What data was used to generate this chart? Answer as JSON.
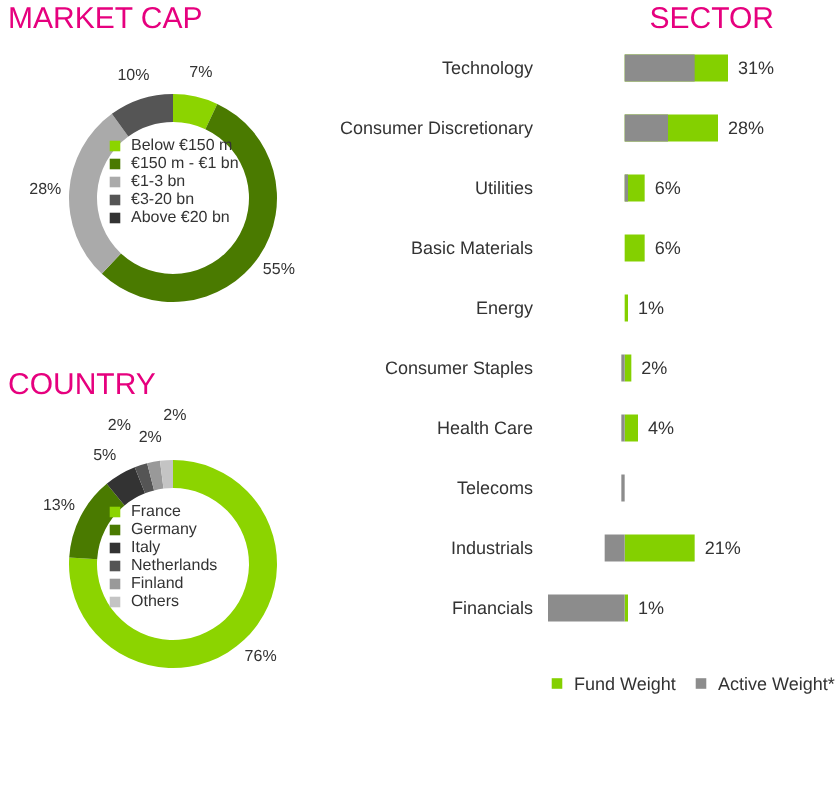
{
  "chart_data": [
    {
      "type": "donut",
      "title": "MARKET CAP",
      "categories": [
        "Below €150 m",
        "€150 m - €1 bn",
        "€1-3 bn",
        "€3-20 bn",
        "Above €20 bn"
      ],
      "values": [
        7,
        55,
        28,
        10,
        0
      ],
      "colors": [
        "#8cd400",
        "#4a7a00",
        "#aaaaaa",
        "#555555",
        "#333333"
      ],
      "value_labels": [
        "7%",
        "55%",
        "28%",
        "10%",
        null
      ],
      "legend": "center"
    },
    {
      "type": "donut",
      "title": "COUNTRY",
      "categories": [
        "France",
        "Germany",
        "Italy",
        "Netherlands",
        "Finland",
        "Others"
      ],
      "values": [
        76,
        13,
        5,
        2,
        2,
        2
      ],
      "colors": [
        "#8cd400",
        "#4a7a00",
        "#333333",
        "#555555",
        "#999999",
        "#c4c4c4"
      ],
      "value_labels": [
        "76%",
        "13%",
        "5%",
        "2%",
        "2%",
        "2%"
      ],
      "legend": "center"
    },
    {
      "type": "bar",
      "title": "SECTOR",
      "orientation": "horizontal",
      "legend": "bottom",
      "categories": [
        "Technology",
        "Consumer Discretionary",
        "Utilities",
        "Basic Materials",
        "Energy",
        "Consumer Staples",
        "Health Care",
        "Telecoms",
        "Industrials",
        "Financials"
      ],
      "series": [
        {
          "name": "Fund Weight",
          "color": "#84d000",
          "values": [
            31,
            28,
            6,
            6,
            1,
            2,
            4,
            0,
            21,
            1
          ],
          "value_labels": [
            "31%",
            "28%",
            "6%",
            "6%",
            "1%",
            "2%",
            "4%",
            null,
            "21%",
            "1%"
          ]
        },
        {
          "name": "Active Weight*",
          "color": "#8c8c8c",
          "values": [
            21,
            13,
            1,
            0,
            0,
            -1,
            -1,
            -1,
            -6,
            -23
          ]
        }
      ]
    }
  ]
}
